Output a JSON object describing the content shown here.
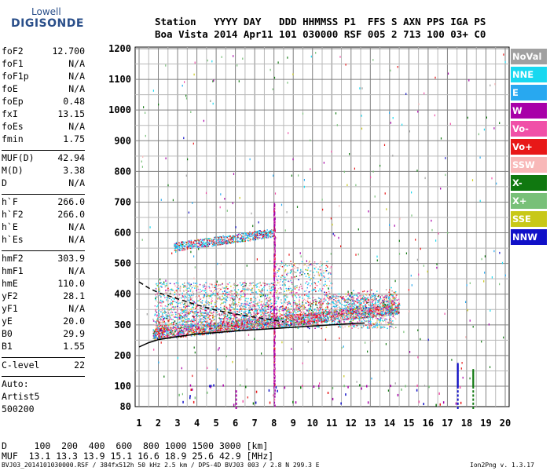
{
  "logo": {
    "line1": "Lowell",
    "line2": "DIGISONDE"
  },
  "header": {
    "labels": "Station   YYYY DAY   DDD HHMMSS P1  FFS S AXN PPS IGA PS",
    "values": "Boa Vista 2014 Apr11 101 030000 RSF 005 2 713 100 03+ C0"
  },
  "params": [
    {
      "name": "foF2",
      "value": "12.700"
    },
    {
      "name": "foF1",
      "value": "N/A"
    },
    {
      "name": "foF1p",
      "value": "N/A"
    },
    {
      "name": "foE",
      "value": "N/A"
    },
    {
      "name": "foEp",
      "value": "0.48"
    },
    {
      "name": "fxI",
      "value": "13.15"
    },
    {
      "name": "foEs",
      "value": "N/A"
    },
    {
      "name": "fmin",
      "value": "1.75"
    },
    {
      "sep": true
    },
    {
      "name": "MUF(D)",
      "value": "42.94"
    },
    {
      "name": "M(D)",
      "value": "3.38"
    },
    {
      "name": "D",
      "value": "N/A"
    },
    {
      "sep": true
    },
    {
      "name": "h`F",
      "value": "266.0"
    },
    {
      "name": "h`F2",
      "value": "266.0"
    },
    {
      "name": "h`E",
      "value": "N/A"
    },
    {
      "name": "h`Es",
      "value": "N/A"
    },
    {
      "sep": true
    },
    {
      "name": "hmF2",
      "value": "303.9"
    },
    {
      "name": "hmF1",
      "value": "N/A"
    },
    {
      "name": "hmE",
      "value": "110.0"
    },
    {
      "name": "yF2",
      "value": "28.1"
    },
    {
      "name": "yF1",
      "value": "N/A"
    },
    {
      "name": "yE",
      "value": "20.0"
    },
    {
      "name": "B0",
      "value": "29.9"
    },
    {
      "name": "B1",
      "value": "1.55"
    },
    {
      "sep": true
    },
    {
      "name": "C-level",
      "value": "22"
    },
    {
      "sep": true
    }
  ],
  "auto": [
    "Auto:",
    "Artist5",
    "500200"
  ],
  "legend": [
    {
      "label": "NoVal",
      "color": "#a0a0a0"
    },
    {
      "label": "NNE",
      "color": "#18d8f0"
    },
    {
      "label": "E",
      "color": "#28a8f0"
    },
    {
      "label": "W",
      "color": "#a800a8"
    },
    {
      "label": "Vo-",
      "color": "#f050a8"
    },
    {
      "label": "Vo+",
      "color": "#e81818"
    },
    {
      "label": "SSW",
      "color": "#f8b8b8"
    },
    {
      "label": "X-",
      "color": "#107810"
    },
    {
      "label": "X+",
      "color": "#78c078"
    },
    {
      "label": "SSE",
      "color": "#c8c818"
    },
    {
      "label": "NNW",
      "color": "#1010c8"
    }
  ],
  "bottom": {
    "dline": "D     100  200  400  600  800 1000 1500 3000 [km]",
    "mufline": "MUF  13.1 13.3 13.9 15.1 16.6 18.9 25.6 42.9 [MHz]"
  },
  "footer": {
    "left": "BVJ03_2014101030000.RSF / 384fx512h 50 kHz 2.5 km / DPS-4D BVJ03 003 / 2.8 N 299.3 E",
    "right": "Ion2Png v. 1.3.17"
  },
  "chart_data": {
    "type": "scatter",
    "xlim": [
      1,
      20
    ],
    "ylim": [
      80,
      1200
    ],
    "x_ticks": [
      1,
      2,
      3,
      4,
      5,
      6,
      7,
      8,
      9,
      10,
      11,
      12,
      13,
      14,
      15,
      16,
      17,
      18,
      19,
      20
    ],
    "y_ticks": [
      80,
      100,
      200,
      300,
      400,
      500,
      600,
      700,
      800,
      900,
      1000,
      1100,
      1200
    ],
    "grid": true,
    "profile_solid": {
      "x": [
        1,
        1.5,
        2,
        3,
        4,
        5,
        6,
        7,
        8,
        9,
        10,
        11,
        12,
        12.7
      ],
      "y": [
        228,
        242,
        252,
        262,
        270,
        275,
        280,
        284,
        288,
        292,
        296,
        300,
        304,
        306
      ]
    },
    "profile_dashed": {
      "x": [
        1,
        1.5,
        2,
        3,
        4,
        5,
        6,
        7,
        8,
        8.5
      ],
      "y": [
        440,
        420,
        405,
        385,
        365,
        348,
        335,
        325,
        315,
        310
      ]
    }
  }
}
